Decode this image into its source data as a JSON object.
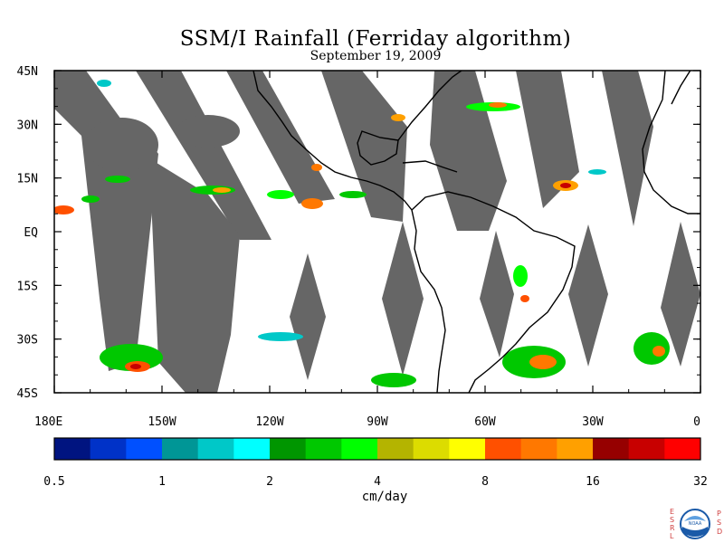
{
  "title": "SSM/I Rainfall (Ferriday algorithm)",
  "subtitle": "September 19, 2009",
  "colors": {
    "land_outline": "#000000",
    "no_data_swath": "#666666",
    "background": "#ffffff"
  },
  "map": {
    "lon_range": [
      -180,
      0
    ],
    "lat_range": [
      -45,
      45
    ],
    "lat_labels": [
      {
        "lat": 45,
        "text": "45N"
      },
      {
        "lat": 30,
        "text": "30N"
      },
      {
        "lat": 15,
        "text": "15N"
      },
      {
        "lat": 0,
        "text": "EQ"
      },
      {
        "lat": -15,
        "text": "15S"
      },
      {
        "lat": -30,
        "text": "30S"
      },
      {
        "lat": -45,
        "text": "45S"
      }
    ],
    "lon_labels": [
      {
        "lon": -180,
        "text": "180E"
      },
      {
        "lon": -150,
        "text": "150W"
      },
      {
        "lon": -120,
        "text": "120W"
      },
      {
        "lon": -90,
        "text": "90W"
      },
      {
        "lon": -60,
        "text": "60W"
      },
      {
        "lon": -30,
        "text": "30W"
      },
      {
        "lon": 0,
        "text": "0"
      }
    ]
  },
  "colorbar": {
    "units": "cm/day",
    "colors": [
      "#001480",
      "#0032c8",
      "#0050ff",
      "#009696",
      "#00c8c8",
      "#00ffff",
      "#009600",
      "#00c800",
      "#00ff00",
      "#b4b400",
      "#dcdc00",
      "#ffff00",
      "#ff5000",
      "#ff7800",
      "#ffa000",
      "#960000",
      "#c80000",
      "#ff0000"
    ],
    "tick_labels": [
      {
        "bin": 0,
        "text": "0.5"
      },
      {
        "bin": 3,
        "text": "1"
      },
      {
        "bin": 6,
        "text": "2"
      },
      {
        "bin": 9,
        "text": "4"
      },
      {
        "bin": 12,
        "text": "8"
      },
      {
        "bin": 15,
        "text": "16"
      },
      {
        "bin": 18,
        "text": "32"
      }
    ]
  },
  "logo": {
    "left_letters": [
      "E",
      "S",
      "R",
      "L"
    ],
    "right_letters": [
      "P",
      "S",
      "D"
    ],
    "emblem_text": "NOAA"
  }
}
